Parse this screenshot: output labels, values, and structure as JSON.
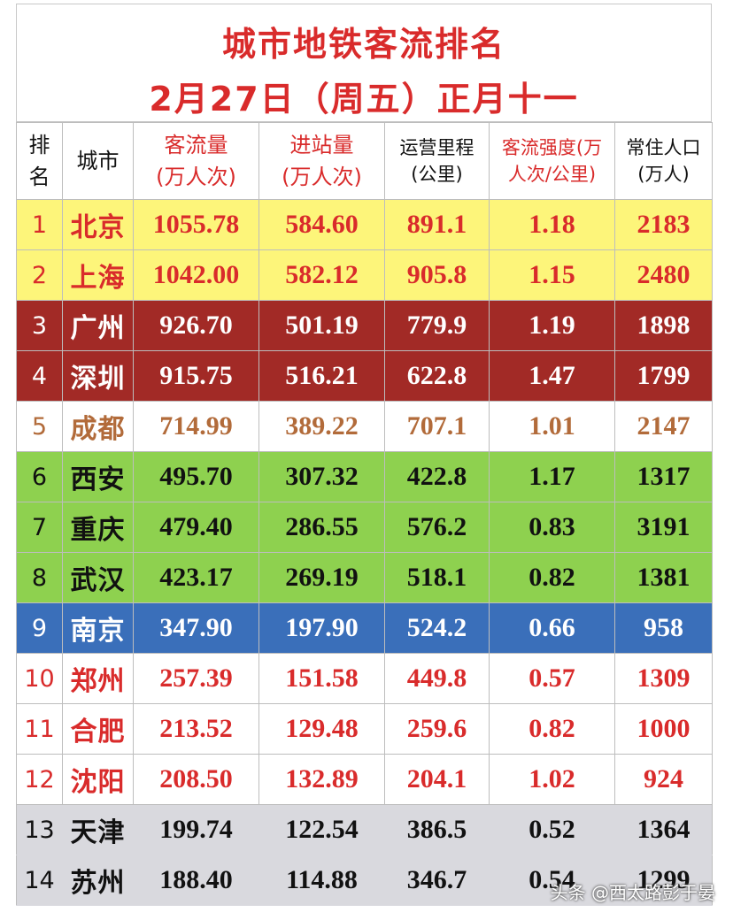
{
  "title": {
    "line1": "城市地铁客流排名",
    "line2": "2月27日（周五）正月十一"
  },
  "headers": {
    "rank": "排名",
    "city": "城市",
    "flow_line1": "客流量",
    "flow_line2": "(万人次)",
    "entry_line1": "进站量",
    "entry_line2": "(万人次)",
    "mileage_line1": "运营里程",
    "mileage_line2": "(公里)",
    "intensity_line1": "客流强度(万",
    "intensity_line2": "人次/公里)",
    "pop_line1": "常住人口",
    "pop_line2": "(万人)"
  },
  "rows": [
    {
      "rank": "1",
      "city": "北京",
      "flow": "1055.78",
      "entry": "584.60",
      "mileage": "891.1",
      "intensity": "1.18",
      "pop": "2183"
    },
    {
      "rank": "2",
      "city": "上海",
      "flow": "1042.00",
      "entry": "582.12",
      "mileage": "905.8",
      "intensity": "1.15",
      "pop": "2480"
    },
    {
      "rank": "3",
      "city": "广州",
      "flow": "926.70",
      "entry": "501.19",
      "mileage": "779.9",
      "intensity": "1.19",
      "pop": "1898"
    },
    {
      "rank": "4",
      "city": "深圳",
      "flow": "915.75",
      "entry": "516.21",
      "mileage": "622.8",
      "intensity": "1.47",
      "pop": "1799"
    },
    {
      "rank": "5",
      "city": "成都",
      "flow": "714.99",
      "entry": "389.22",
      "mileage": "707.1",
      "intensity": "1.01",
      "pop": "2147"
    },
    {
      "rank": "6",
      "city": "西安",
      "flow": "495.70",
      "entry": "307.32",
      "mileage": "422.8",
      "intensity": "1.17",
      "pop": "1317"
    },
    {
      "rank": "7",
      "city": "重庆",
      "flow": "479.40",
      "entry": "286.55",
      "mileage": "576.2",
      "intensity": "0.83",
      "pop": "3191"
    },
    {
      "rank": "8",
      "city": "武汉",
      "flow": "423.17",
      "entry": "269.19",
      "mileage": "518.1",
      "intensity": "0.82",
      "pop": "1381"
    },
    {
      "rank": "9",
      "city": "南京",
      "flow": "347.90",
      "entry": "197.90",
      "mileage": "524.2",
      "intensity": "0.66",
      "pop": "958"
    },
    {
      "rank": "10",
      "city": "郑州",
      "flow": "257.39",
      "entry": "151.58",
      "mileage": "449.8",
      "intensity": "0.57",
      "pop": "1309"
    },
    {
      "rank": "11",
      "city": "合肥",
      "flow": "213.52",
      "entry": "129.48",
      "mileage": "259.6",
      "intensity": "0.82",
      "pop": "1000"
    },
    {
      "rank": "12",
      "city": "沈阳",
      "flow": "208.50",
      "entry": "132.89",
      "mileage": "204.1",
      "intensity": "1.02",
      "pop": "924"
    },
    {
      "rank": "13",
      "city": "天津",
      "flow": "199.74",
      "entry": "122.54",
      "mileage": "386.5",
      "intensity": "0.52",
      "pop": "1364"
    },
    {
      "rank": "14",
      "city": "苏州",
      "flow": "188.40",
      "entry": "114.88",
      "mileage": "346.7",
      "intensity": "0.54",
      "pop": "1299"
    }
  ],
  "row_colors": [
    "yellow",
    "yellow",
    "maroon",
    "maroon",
    "white",
    "green",
    "green",
    "green",
    "blue",
    "white-red",
    "white-red",
    "white-red",
    "gray",
    "gray"
  ],
  "watermark": "头条 @西太路彭于晏"
}
